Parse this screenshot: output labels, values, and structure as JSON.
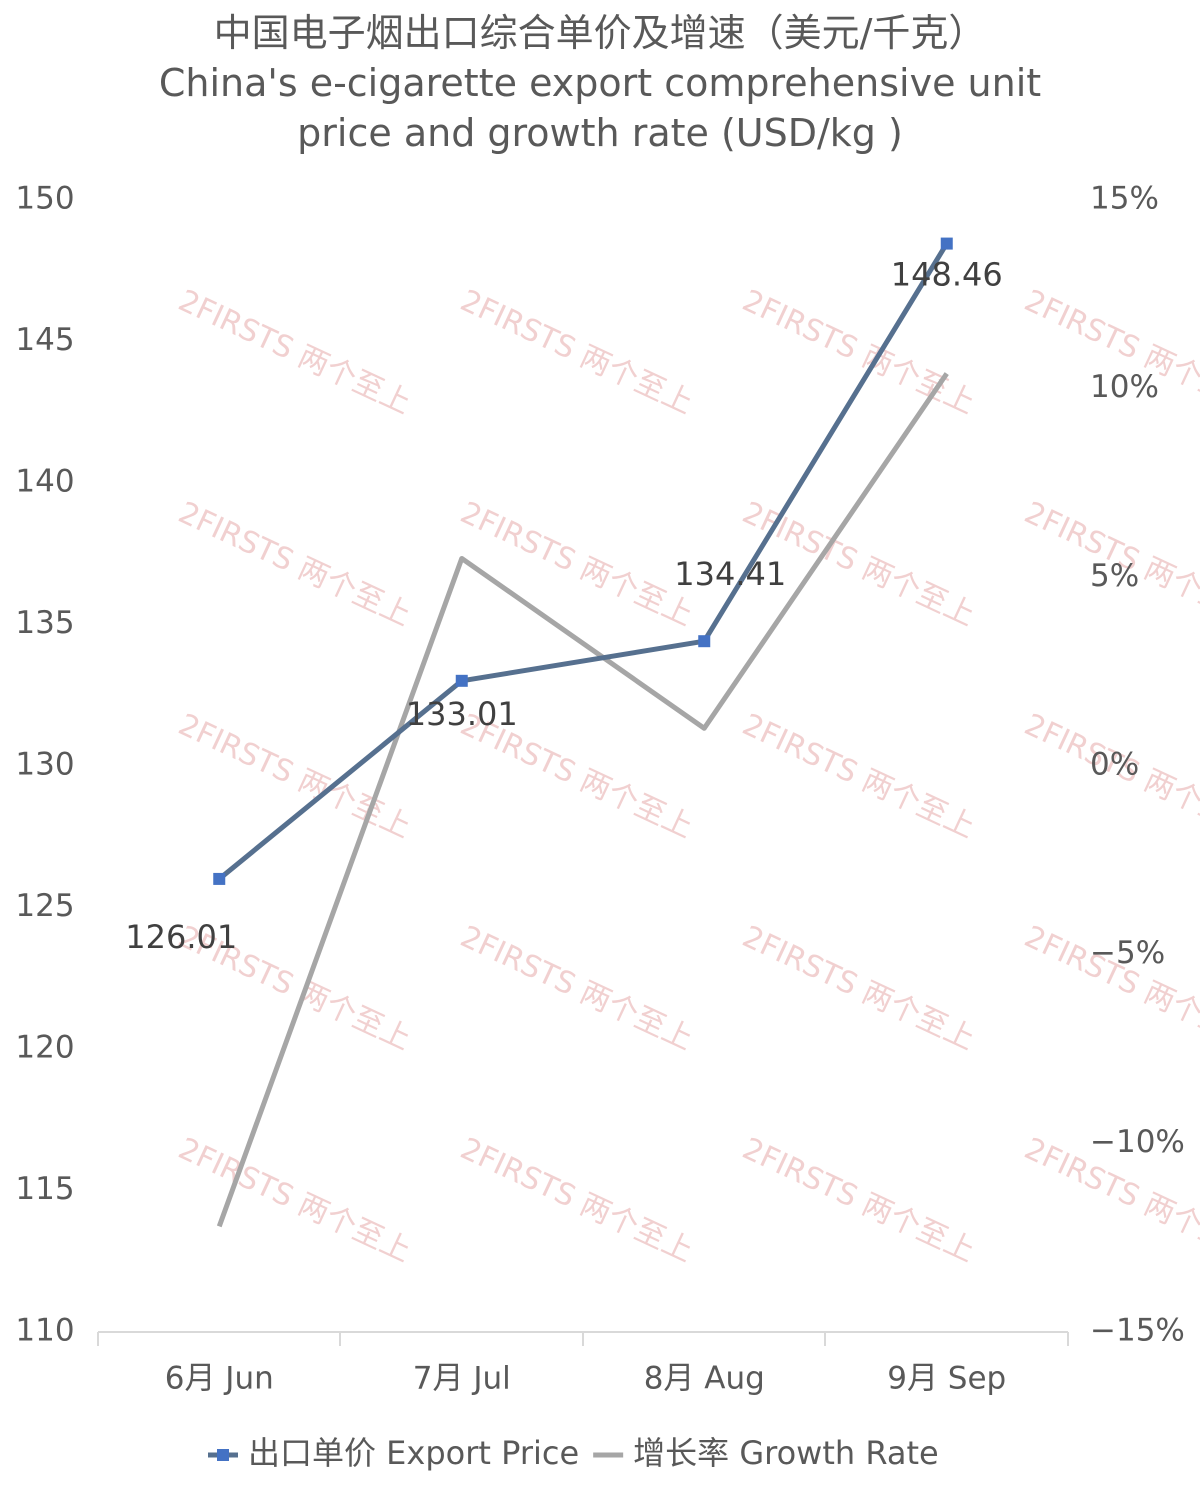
{
  "chart_data": {
    "type": "line",
    "title": "中国电子烟出口综合单价及增速（美元/千克）",
    "subtitle": "China's e-cigarette export comprehensive unit price and growth rate (USD/kg )",
    "watermark": "2FIRSTS 两个至上",
    "categories": [
      "6月 Jun",
      "7月 Jul",
      "8月 Aug",
      "9月 Sep"
    ],
    "series": [
      {
        "name": "出口单价 Export Price",
        "color": "#56708f",
        "marker_color": "#4472c4",
        "values": [
          126.01,
          133.01,
          134.41,
          148.46
        ],
        "value_labels": [
          "126.01",
          "133.01",
          "134.41",
          "148.46"
        ]
      },
      {
        "name": "增长率 Growth Rate",
        "color": "#a6a6a6",
        "axis": "y2",
        "values": [
          -12.2,
          5.5,
          1.0,
          10.4
        ]
      }
    ],
    "ylim": [
      110,
      150
    ],
    "yticks": [
      110,
      115,
      120,
      125,
      130,
      135,
      140,
      145,
      150
    ],
    "y2lim": [
      -15,
      15
    ],
    "y2ticks": [
      {
        "value": -15,
        "label": "−15%"
      },
      {
        "value": -10,
        "label": "−10%"
      },
      {
        "value": -5,
        "label": "−5%"
      },
      {
        "value": 0,
        "label": "0%"
      },
      {
        "value": 5,
        "label": "5%"
      },
      {
        "value": 10,
        "label": "10%"
      },
      {
        "value": 15,
        "label": "15%"
      }
    ],
    "legend": "bottom"
  }
}
